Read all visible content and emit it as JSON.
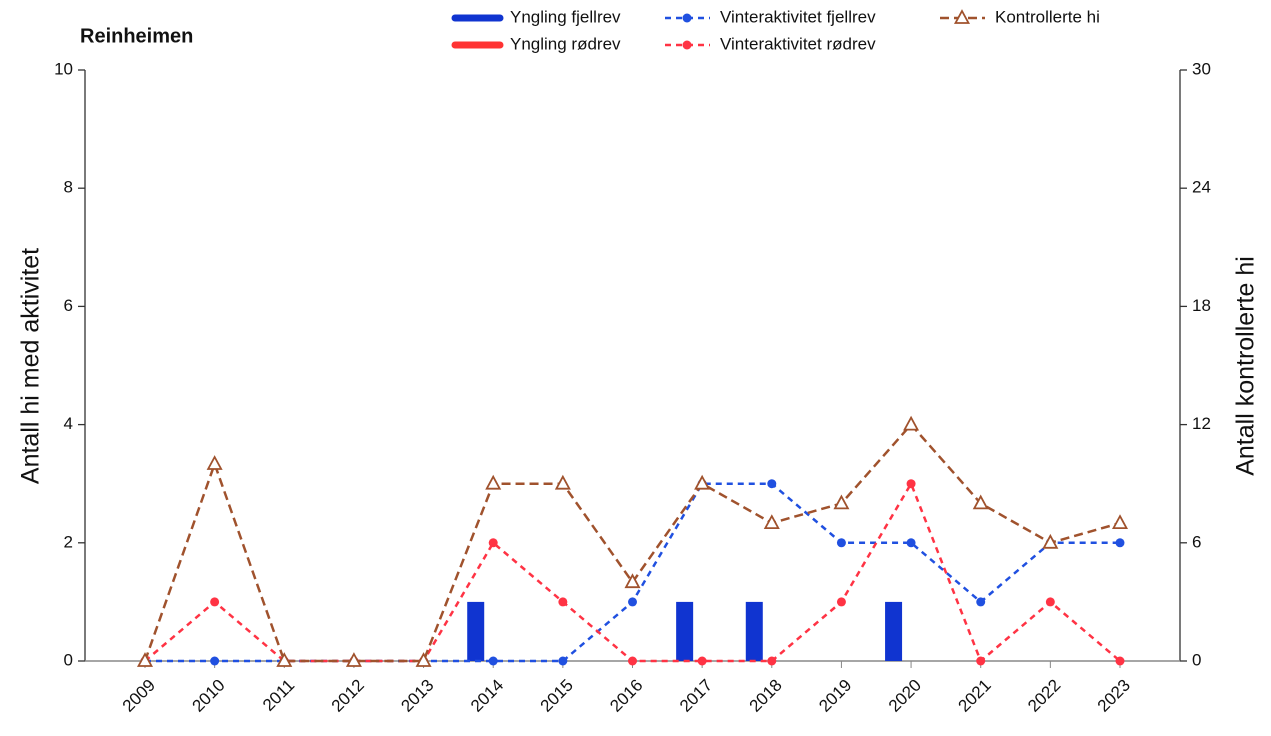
{
  "chart_data": {
    "type": "combo",
    "title": "Reinheimen",
    "categories": [
      "2009",
      "2010",
      "2011",
      "2012",
      "2013",
      "2014",
      "2015",
      "2016",
      "2017",
      "2018",
      "2019",
      "2020",
      "2021",
      "2022",
      "2023"
    ],
    "y_label": "Antall hi med aktivitet",
    "y2_label": "Antall kontrollerte hi",
    "ylim": [
      0,
      10
    ],
    "yticks": [
      0,
      2,
      4,
      6,
      8,
      10
    ],
    "y2lim": [
      0,
      30
    ],
    "y2ticks": [
      0,
      6,
      12,
      18,
      24,
      30
    ],
    "series": [
      {
        "name": "Yngling fjellrev",
        "type": "bar",
        "color": "#1034d0",
        "values": [
          0,
          0,
          0,
          0,
          0,
          1,
          0,
          0,
          1,
          1,
          0,
          1,
          0,
          0,
          0
        ]
      },
      {
        "name": "Yngling rødrev",
        "type": "bar",
        "color": "#ff3333",
        "values": [
          0,
          0,
          0,
          0,
          0,
          0,
          0,
          0,
          0,
          0,
          0,
          0,
          0,
          0,
          0
        ]
      },
      {
        "name": "Vinteraktivitet fjellrev",
        "type": "line",
        "marker": "dot",
        "color": "#2050e0",
        "values": [
          0,
          0,
          0,
          0,
          0,
          0,
          0,
          1,
          3,
          3,
          2,
          2,
          1,
          2,
          2
        ]
      },
      {
        "name": "Vinteraktivitet rødrev",
        "type": "line",
        "marker": "dot",
        "color": "#ff3344",
        "values": [
          0,
          1,
          0,
          0,
          0,
          2,
          1,
          0,
          0,
          0,
          1,
          3,
          0,
          1,
          0
        ]
      },
      {
        "name": "Kontrollerte hi",
        "type": "line",
        "marker": "triangle",
        "color": "#a0522d",
        "axis": "y2",
        "values": [
          0,
          10,
          0,
          0,
          0,
          9,
          9,
          4,
          9,
          7,
          8,
          12,
          8,
          6,
          7
        ]
      }
    ]
  }
}
